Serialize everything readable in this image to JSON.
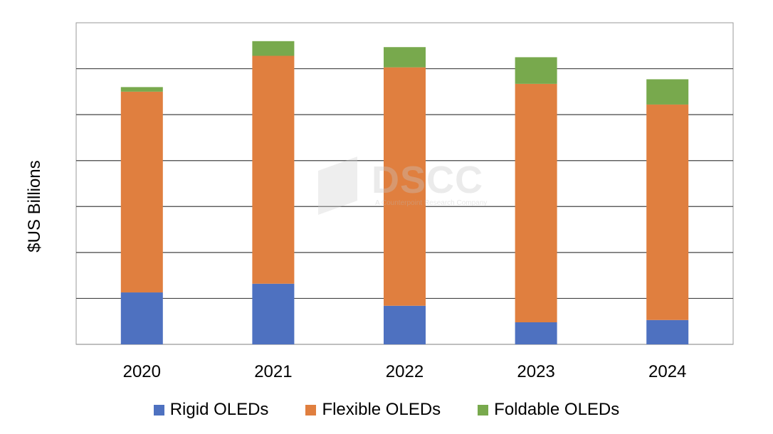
{
  "chart_data": {
    "type": "bar",
    "stacked": true,
    "title": "",
    "xlabel": "",
    "ylabel": "$US Billions",
    "ylim": [
      0,
      7
    ],
    "y_tick_labels_shown": false,
    "grid": true,
    "legend_position": "bottom",
    "categories": [
      "2020",
      "2021",
      "2022",
      "2023",
      "2024"
    ],
    "series": [
      {
        "name": "Rigid OLEDs",
        "color": "#4e71c0",
        "values": [
          1.13,
          1.32,
          0.84,
          0.48,
          0.53
        ]
      },
      {
        "name": "Flexible OLEDs",
        "color": "#e07f3f",
        "values": [
          4.37,
          4.96,
          5.19,
          5.19,
          4.69
        ]
      },
      {
        "name": "Foldable OLEDs",
        "color": "#78a94d",
        "values": [
          0.1,
          0.32,
          0.44,
          0.58,
          0.55
        ]
      }
    ],
    "watermark": {
      "text": "DSCC",
      "subtext": "A Counterpoint Research Company"
    }
  }
}
